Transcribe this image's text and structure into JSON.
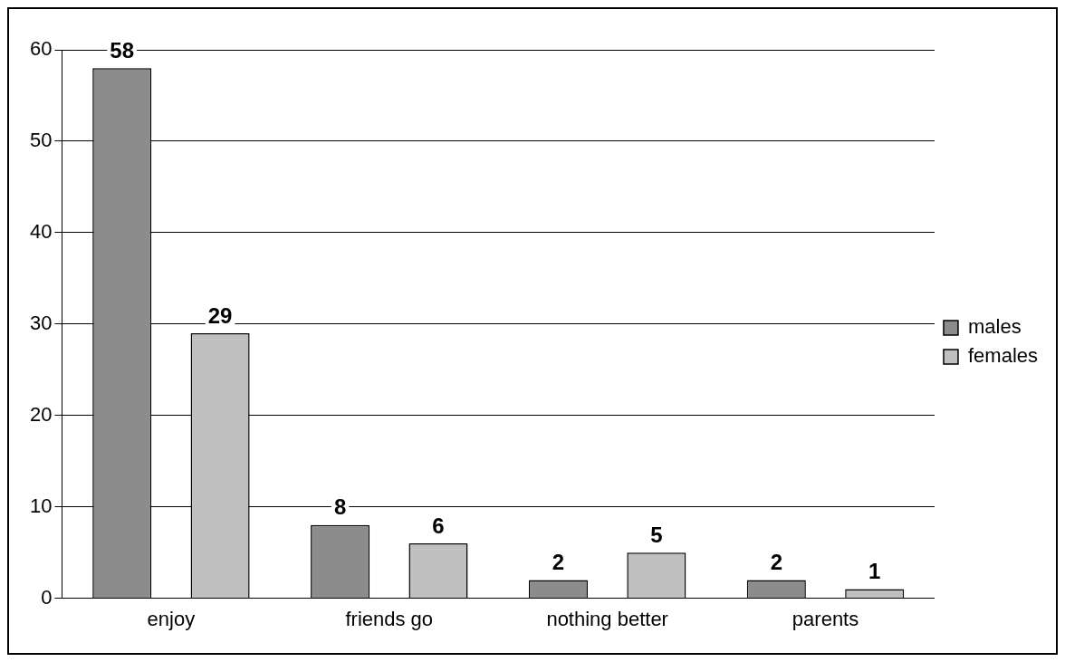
{
  "chart_data": {
    "type": "bar",
    "categories": [
      "enjoy",
      "friends go",
      "nothing better",
      "parents"
    ],
    "series": [
      {
        "name": "males",
        "color": "#8c8c8c",
        "values": [
          58,
          8,
          2,
          2
        ]
      },
      {
        "name": "females",
        "color": "#c0c0c0",
        "values": [
          29,
          6,
          5,
          1
        ]
      }
    ],
    "ylim": [
      0,
      60
    ],
    "yticks": [
      0,
      10,
      20,
      30,
      40,
      50,
      60
    ],
    "grid": "y",
    "legend": "right",
    "data_labels": true
  }
}
